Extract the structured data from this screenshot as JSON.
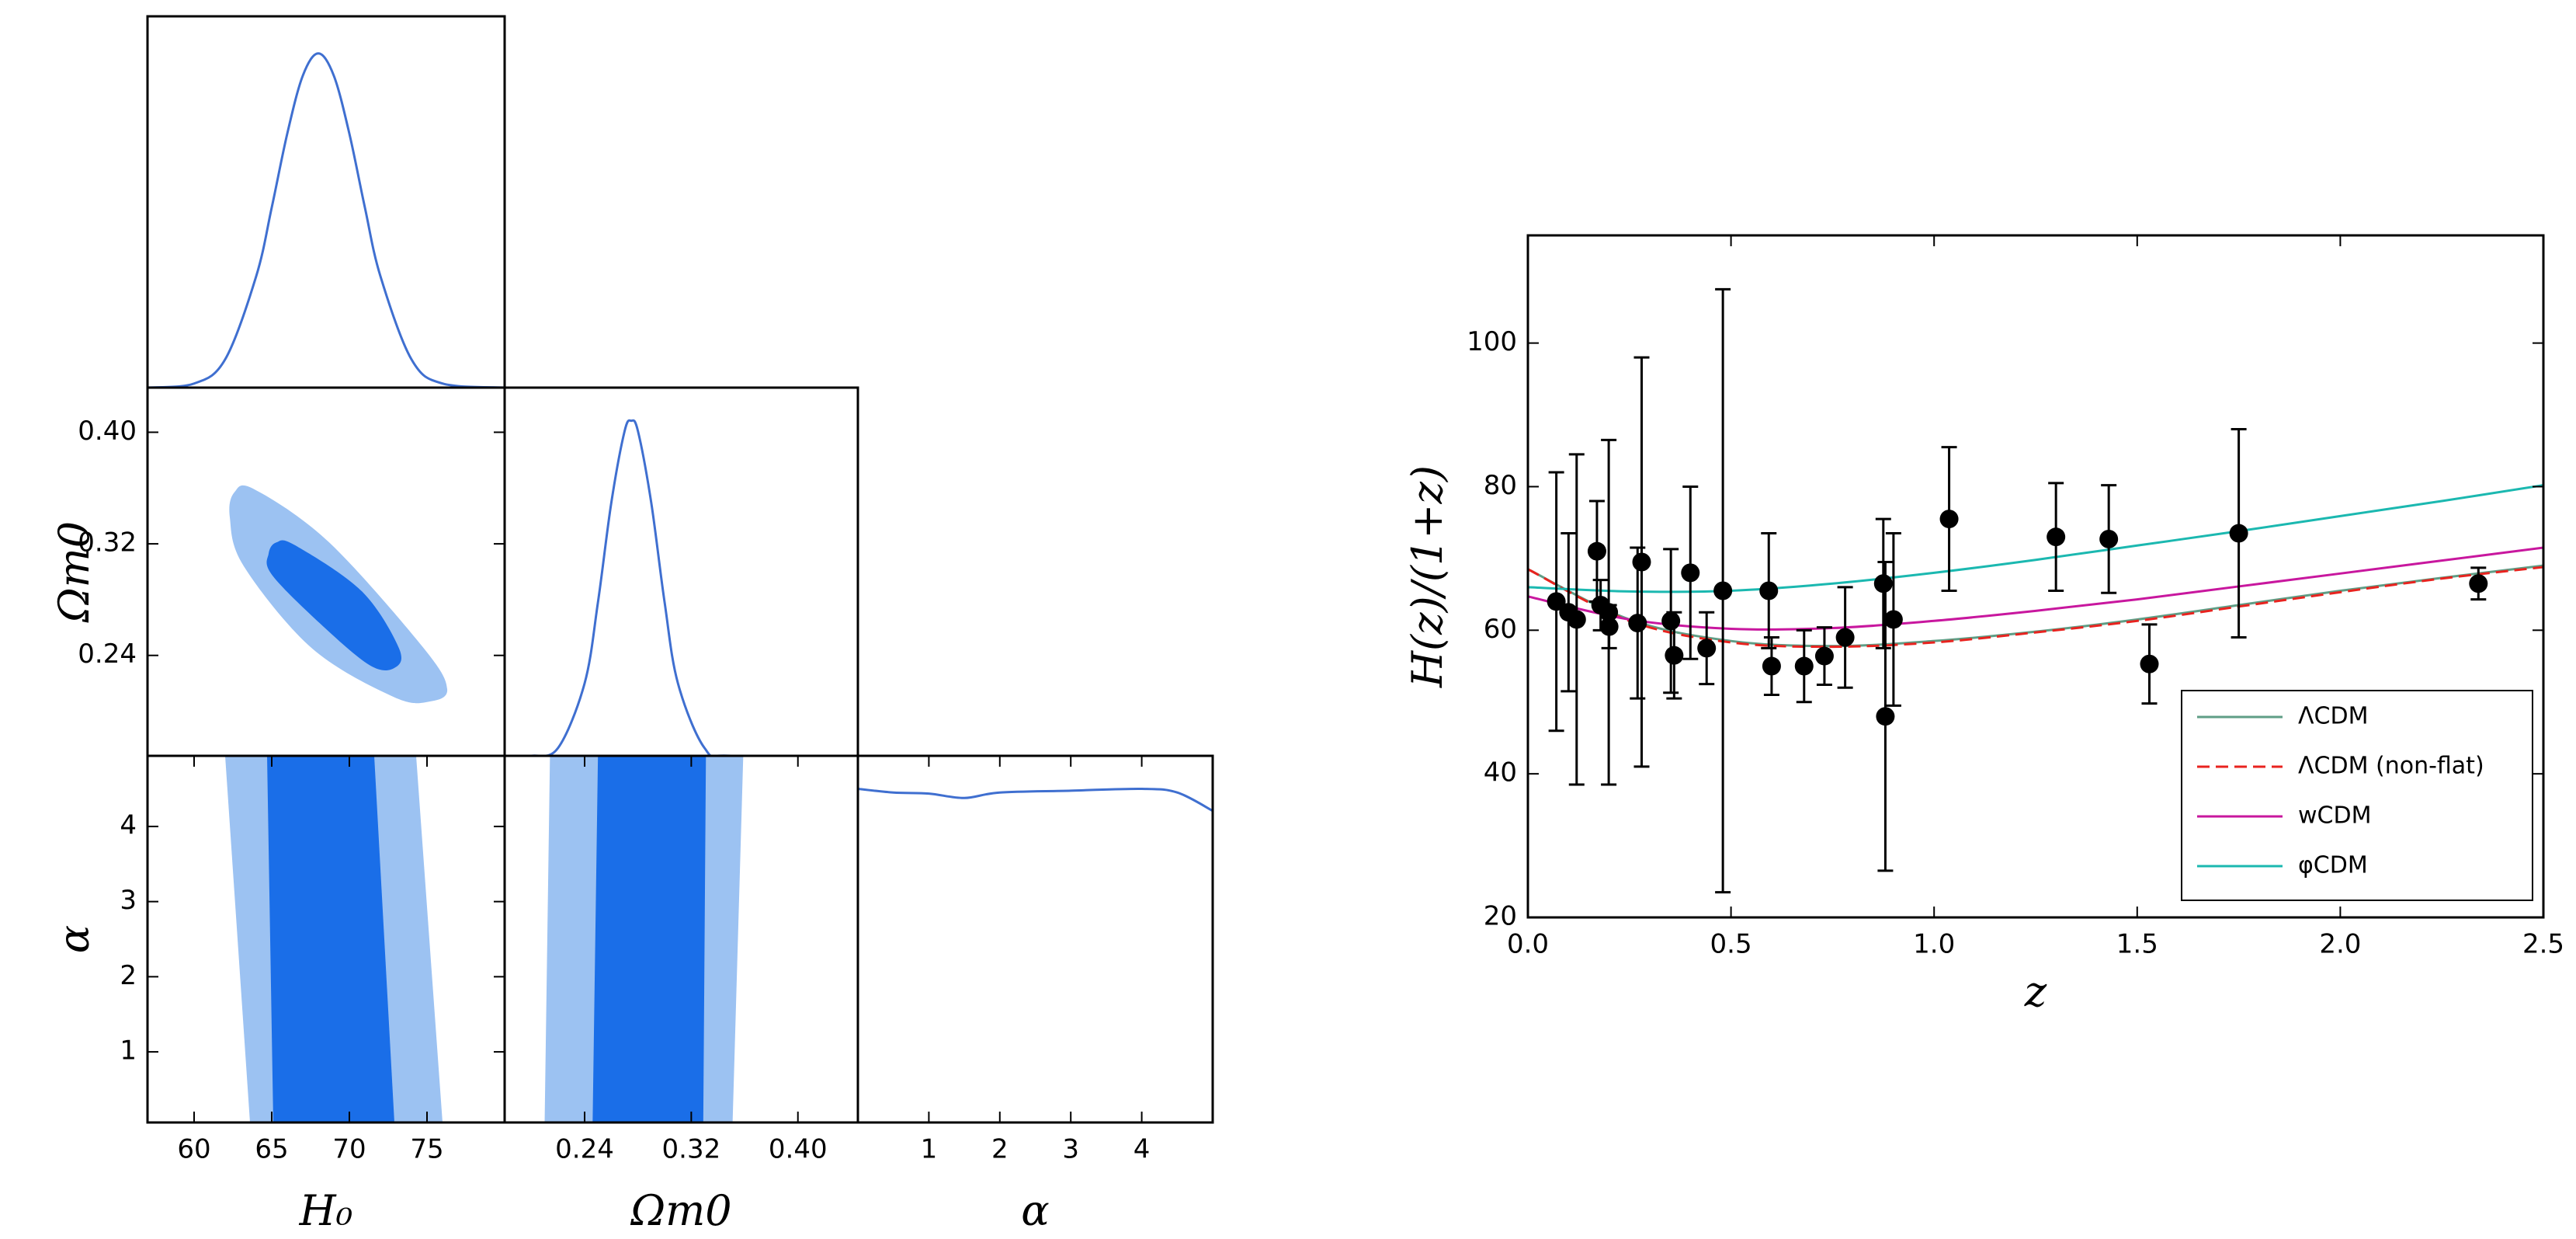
{
  "chart_data": [
    {
      "type": "line",
      "color": "#3f6fd0",
      "xlim": [
        57,
        80
      ],
      "ylim": [
        0,
        1
      ],
      "x": [
        57,
        60,
        62,
        64,
        65,
        66,
        67,
        68,
        69,
        70,
        71,
        72,
        74,
        76,
        80
      ],
      "values": [
        0,
        0.011,
        0.076,
        0.3,
        0.485,
        0.684,
        0.84,
        0.9,
        0.84,
        0.684,
        0.485,
        0.3,
        0.076,
        0.011,
        0
      ]
    },
    {
      "type": "contour",
      "smooth": true,
      "xlim": [
        57,
        80
      ],
      "ylim": [
        0.168,
        0.432
      ],
      "yticks": [
        0.24,
        0.32,
        {
          "value": 0.4,
          "label": "0.40"
        }
      ],
      "ylabel": "Ωm0",
      "contours": [
        {
          "color": "#9cc2f2",
          "x": [
            62.6,
            63.9,
            68.7,
            74.8,
            76.3,
            75.2,
            72.9,
            67.6,
            63.2,
            62.3
          ],
          "y": [
            0.357,
            0.359,
            0.321,
            0.245,
            0.216,
            0.207,
            0.21,
            0.245,
            0.304,
            0.339
          ]
        },
        {
          "color": "#1a6ee8",
          "x": [
            65.3,
            66.5,
            70.8,
            73.2,
            72.9,
            71.3,
            68.1,
            65.0,
            64.8
          ],
          "y": [
            0.321,
            0.319,
            0.286,
            0.245,
            0.231,
            0.233,
            0.263,
            0.298,
            0.313
          ]
        }
      ]
    },
    {
      "type": "line",
      "color": "#3f6fd0",
      "xlim": [
        0.18,
        0.445
      ],
      "ylim": [
        0,
        1
      ],
      "x": [
        0.18,
        0.2,
        0.22,
        0.24,
        0.25,
        0.26,
        0.27,
        0.275,
        0.28,
        0.29,
        0.3,
        0.31,
        0.33,
        0.35,
        0.445
      ],
      "values": [
        0,
        0,
        0.021,
        0.197,
        0.417,
        0.687,
        0.882,
        0.91,
        0.882,
        0.687,
        0.417,
        0.197,
        0.021,
        0,
        0
      ]
    },
    {
      "type": "contour",
      "smooth": false,
      "xlim": [
        57,
        80
      ],
      "ylim": [
        0.06,
        4.94
      ],
      "xticks": [
        60,
        65,
        70,
        75
      ],
      "yticks": [
        1,
        2,
        3,
        4
      ],
      "xlabel": "H₀",
      "ylabel": "α",
      "contours": [
        {
          "color": "#9cc2f2",
          "x": [
            62.0,
            74.3,
            76.0,
            63.6
          ],
          "y": [
            4.94,
            4.94,
            0.06,
            0.06
          ]
        },
        {
          "color": "#1a6ee8",
          "x": [
            64.7,
            71.6,
            72.9,
            65.1
          ],
          "y": [
            4.94,
            4.94,
            0.06,
            0.06
          ]
        }
      ]
    },
    {
      "type": "contour",
      "smooth": false,
      "xlim": [
        0.18,
        0.445
      ],
      "ylim": [
        0.06,
        4.94
      ],
      "xticks": [
        0.24,
        0.32,
        {
          "value": 0.4,
          "label": "0.40"
        }
      ],
      "xlabel": "Ωm0",
      "contours": [
        {
          "color": "#9cc2f2",
          "x": [
            0.214,
            0.359,
            0.351,
            0.21
          ],
          "y": [
            4.94,
            4.94,
            0.06,
            0.06
          ]
        },
        {
          "color": "#1a6ee8",
          "x": [
            0.25,
            0.331,
            0.329,
            0.246
          ],
          "y": [
            4.94,
            4.94,
            0.06,
            0.06
          ]
        }
      ]
    },
    {
      "type": "line",
      "color": "#3f6fd0",
      "xlim": [
        0,
        5
      ],
      "ylim": [
        0,
        1
      ],
      "xticks": [
        1,
        2,
        3,
        4
      ],
      "xlabel": "α",
      "x": [
        0,
        0.5,
        1,
        1.5,
        2,
        3,
        4,
        4.5,
        5
      ],
      "values": [
        0.91,
        0.9,
        0.897,
        0.885,
        0.9,
        0.905,
        0.91,
        0.9,
        0.85
      ]
    },
    {
      "type": "errorbar",
      "xlim": [
        0,
        2.5
      ],
      "ylim": [
        20,
        115
      ],
      "xticks": [
        {
          "value": 0,
          "label": "0.0"
        },
        0.5,
        {
          "value": 1,
          "label": "1.0"
        },
        1.5,
        {
          "value": 2,
          "label": "2.0"
        },
        2.5
      ],
      "yticks": [
        20,
        40,
        60,
        80,
        100
      ],
      "xlabel": "z",
      "ylabel": "H(z)/(1+z)",
      "legend": "lower right",
      "points": {
        "color": "#000000",
        "x": [
          0.07,
          0.1,
          0.12,
          0.17,
          0.179,
          0.199,
          0.2,
          0.27,
          0.28,
          0.352,
          0.36,
          0.4,
          0.44,
          0.48,
          0.593,
          0.6,
          0.68,
          0.73,
          0.781,
          0.875,
          0.88,
          0.9,
          1.037,
          1.3,
          1.43,
          1.53,
          1.75,
          2.34
        ],
        "values": [
          64,
          62.5,
          61.5,
          71,
          63.5,
          62.5,
          60.5,
          61,
          69.5,
          61.3,
          56.5,
          68,
          57.5,
          65.5,
          65.5,
          55,
          55,
          56.4,
          59,
          66.5,
          48,
          61.5,
          75.5,
          73,
          72.7,
          55.3,
          73.5,
          66.5
        ],
        "errors": [
          18,
          11,
          23,
          7,
          3.5,
          24,
          3,
          10.5,
          28.5,
          10,
          6,
          12,
          5,
          42,
          8,
          4,
          5,
          4,
          7,
          9,
          21.5,
          12,
          10,
          7.5,
          7.5,
          5.5,
          14.5,
          2.2
        ]
      },
      "series": [
        {
          "name": "ΛCDM",
          "color": "#5f9e86",
          "dashed": false,
          "x": [
            0,
            0.25,
            0.5,
            0.75,
            1,
            1.25,
            1.5,
            1.75,
            2,
            2.25,
            2.5
          ],
          "values": [
            68.5,
            61.5,
            58.5,
            57.8,
            58.5,
            59.8,
            61.5,
            63.5,
            65.5,
            67.3,
            69
          ]
        },
        {
          "name": "ΛCDM (non-flat)",
          "color": "#e8231f",
          "dashed": true,
          "x": [
            0,
            0.25,
            0.5,
            0.75,
            1,
            1.25,
            1.5,
            1.75,
            2,
            2.25,
            2.5
          ],
          "values": [
            68.5,
            61.3,
            58.3,
            57.7,
            58.3,
            59.7,
            61.3,
            63.3,
            65.3,
            67.2,
            68.8
          ]
        },
        {
          "name": "wCDM",
          "color": "#c8179e",
          "dashed": false,
          "x": [
            0,
            0.25,
            0.5,
            0.75,
            1,
            1.25,
            1.5,
            1.75,
            2,
            2.25,
            2.5
          ],
          "values": [
            64.7,
            61.5,
            60.2,
            60.3,
            61.3,
            62.7,
            64.3,
            66.1,
            67.9,
            69.7,
            71.5
          ]
        },
        {
          "name": "φCDM",
          "color": "#1bb8b0",
          "dashed": false,
          "x": [
            0,
            0.25,
            0.5,
            0.75,
            1,
            1.25,
            1.5,
            1.75,
            2,
            2.25,
            2.5
          ],
          "values": [
            66,
            65.4,
            65.5,
            66.5,
            68,
            69.8,
            71.8,
            73.8,
            75.9,
            78,
            80.2
          ]
        }
      ]
    }
  ]
}
